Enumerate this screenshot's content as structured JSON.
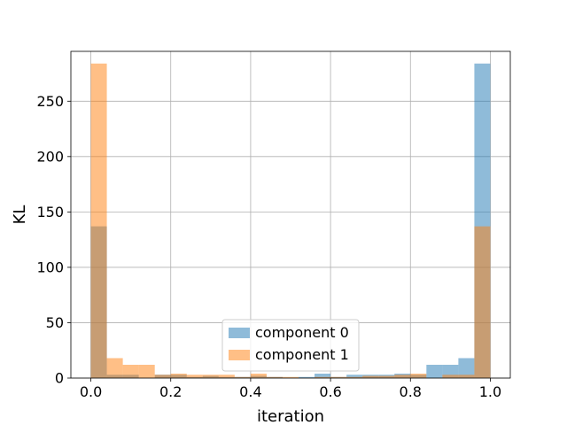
{
  "chart_data": {
    "type": "bar",
    "subtype": "overlapping-histogram",
    "title": "",
    "xlabel": "iteration",
    "ylabel": "KL",
    "xlim": [
      -0.05,
      1.05
    ],
    "ylim": [
      0,
      295
    ],
    "xticks": [
      0.0,
      0.2,
      0.4,
      0.6,
      0.8,
      1.0
    ],
    "xtick_labels": [
      "0.0",
      "0.2",
      "0.4",
      "0.6",
      "0.8",
      "1.0"
    ],
    "yticks": [
      0,
      50,
      100,
      150,
      200,
      250
    ],
    "ytick_labels": [
      "0",
      "50",
      "100",
      "150",
      "200",
      "250"
    ],
    "grid": true,
    "legend_position": "bottom-center",
    "bin_edges": [
      0.0,
      0.04,
      0.08,
      0.12,
      0.16,
      0.2,
      0.24,
      0.28,
      0.32,
      0.36,
      0.4,
      0.44,
      0.48,
      0.52,
      0.56,
      0.6,
      0.64,
      0.68,
      0.72,
      0.76,
      0.8,
      0.84,
      0.88,
      0.92,
      0.96,
      1.0
    ],
    "series": [
      {
        "name": "component 0",
        "color": "#1f77b4",
        "alpha": 0.5,
        "values": [
          137,
          3,
          3,
          0,
          3,
          3,
          1,
          2,
          1,
          1,
          2,
          1,
          0,
          1,
          4,
          1,
          3,
          3,
          3,
          4,
          3,
          12,
          12,
          18,
          284
        ]
      },
      {
        "name": "component 1",
        "color": "#ff7f0e",
        "alpha": 0.5,
        "values": [
          284,
          18,
          12,
          12,
          3,
          4,
          3,
          3,
          3,
          1,
          4,
          1,
          1,
          0,
          1,
          1,
          1,
          2,
          2,
          3,
          4,
          0,
          3,
          3,
          137
        ]
      }
    ]
  }
}
